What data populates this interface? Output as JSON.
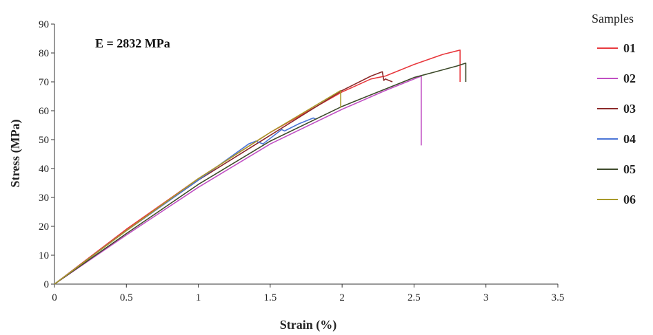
{
  "chart_data": {
    "type": "line",
    "xlabel": "Strain (%)",
    "ylabel": "Stress (MPa)",
    "xlim": [
      0,
      3.5
    ],
    "ylim": [
      0,
      90
    ],
    "xticks": [
      0,
      0.5,
      1,
      1.5,
      2,
      2.5,
      3,
      3.5
    ],
    "xtick_labels": [
      "0",
      "0.5",
      "1",
      "1.5",
      "2",
      "2.5",
      "3",
      "3.5"
    ],
    "yticks": [
      0,
      10,
      20,
      30,
      40,
      50,
      60,
      70,
      80,
      90
    ],
    "ytick_labels": [
      "0",
      "10",
      "20",
      "30",
      "40",
      "50",
      "60",
      "70",
      "80",
      "90"
    ],
    "grid": false,
    "annotation": "E = 2832 MPa",
    "legend_title": "Samples",
    "legend_position": "right",
    "series": [
      {
        "name": "01",
        "color": "#e8383d",
        "x": [
          0,
          0.5,
          1.0,
          1.5,
          2.0,
          2.2,
          2.25,
          2.3,
          2.5,
          2.7,
          2.82,
          2.82
        ],
        "y": [
          0,
          19,
          36.5,
          52.5,
          66.5,
          71,
          71.5,
          72,
          76,
          79.5,
          81,
          70
        ]
      },
      {
        "name": "02",
        "color": "#c04fc3",
        "x": [
          0,
          0.5,
          1.0,
          1.5,
          2.0,
          2.3,
          2.55,
          2.55
        ],
        "y": [
          0,
          17,
          33.5,
          48.5,
          60.5,
          67,
          72,
          48
        ]
      },
      {
        "name": "03",
        "color": "#8b2a2a",
        "x": [
          0,
          0.5,
          1.0,
          1.5,
          2.0,
          2.2,
          2.28,
          2.29,
          2.3,
          2.35
        ],
        "y": [
          0,
          18.5,
          36,
          51.5,
          67,
          72,
          73.5,
          70.5,
          71,
          70
        ]
      },
      {
        "name": "04",
        "color": "#4a74d6",
        "x": [
          0,
          0.5,
          1.0,
          1.35,
          1.4,
          1.45,
          1.58,
          1.6,
          1.7,
          1.8,
          1.82
        ],
        "y": [
          0,
          18.5,
          36,
          48.5,
          49.5,
          48.5,
          53.5,
          53,
          55.5,
          57.5,
          57
        ]
      },
      {
        "name": "05",
        "color": "#3d4a2a",
        "x": [
          0,
          0.5,
          1.0,
          1.5,
          2.0,
          2.5,
          2.8,
          2.86,
          2.86
        ],
        "y": [
          0,
          17.5,
          34.5,
          49.5,
          61.5,
          71.5,
          75.5,
          76.5,
          70
        ]
      },
      {
        "name": "06",
        "color": "#a89a2a",
        "x": [
          0,
          0.5,
          1.0,
          1.5,
          1.99,
          1.99
        ],
        "y": [
          0,
          18.5,
          36.5,
          52.5,
          67,
          61
        ]
      }
    ]
  }
}
